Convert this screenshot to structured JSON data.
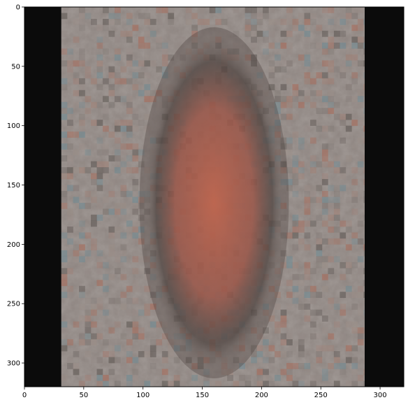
{
  "chart_data": {
    "type": "heatmap",
    "title": "",
    "xlabel": "",
    "ylabel": "",
    "xlim": [
      0,
      320
    ],
    "ylim": [
      320,
      0
    ],
    "x_ticks": [
      0,
      50,
      100,
      150,
      200,
      250,
      300
    ],
    "y_ticks": [
      0,
      50,
      100,
      150,
      200,
      250,
      300
    ],
    "x_tick_labels": [
      "0",
      "50",
      "100",
      "150",
      "200",
      "250",
      "300"
    ],
    "y_tick_labels": [
      "0",
      "50",
      "100",
      "150",
      "200",
      "250",
      "300"
    ],
    "grid": false,
    "content": "image display with black borders at left and right; central grey textured area with a reddish elongated blob",
    "black_border_x_ranges": [
      [
        0,
        31
      ],
      [
        287,
        320
      ]
    ],
    "image_extent_x": [
      31,
      287
    ],
    "blob_center": [
      150,
      150
    ],
    "blob_extent": {
      "x": [
        100,
        220
      ],
      "y": [
        20,
        310
      ]
    },
    "colors": {
      "border": "#0b0b0b",
      "background_grey": "#8d8480",
      "blob_red": "#b5644f",
      "blob_dark_edge": "#4a3f3b",
      "speckle_blue": "#6f8a93"
    }
  }
}
